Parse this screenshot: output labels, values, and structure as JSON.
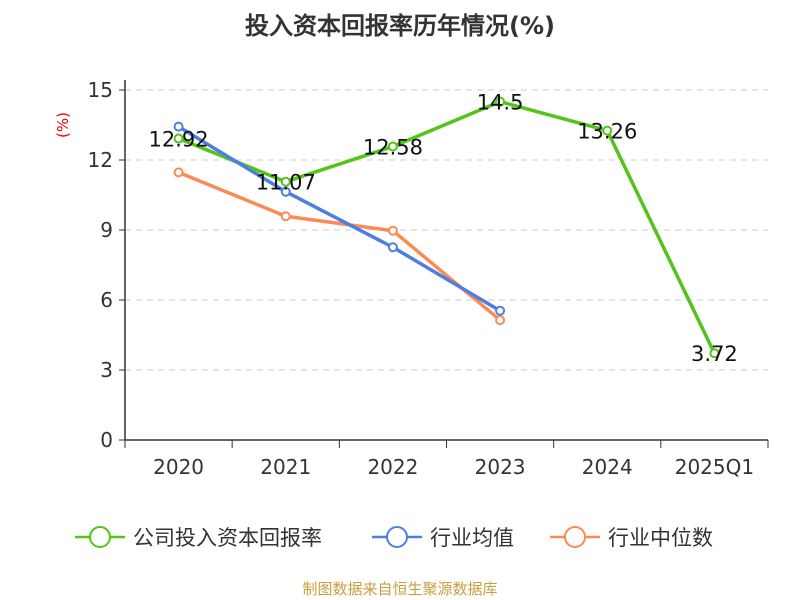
{
  "chart_data": {
    "type": "line",
    "title": "投入资本回报率历年情况(%)",
    "ylabel": "(%)",
    "xlabel": "",
    "categories": [
      "2020",
      "2021",
      "2022",
      "2023",
      "2024",
      "2025Q1"
    ],
    "ylim": [
      0,
      15
    ],
    "yticks": [
      0,
      3,
      6,
      9,
      12,
      15
    ],
    "grid": true,
    "legend_position": "bottom",
    "series": [
      {
        "name": "公司投入资本回报率",
        "color": "#52c41a",
        "values": [
          12.92,
          11.07,
          12.58,
          14.5,
          13.26,
          3.72
        ],
        "labels": [
          "12.92",
          "11.07",
          "12.58",
          "14.5",
          "13.26",
          "3.72"
        ]
      },
      {
        "name": "行业均值",
        "color": "#4e7fe0",
        "values": [
          13.43,
          10.64,
          8.26,
          5.54,
          null,
          null
        ]
      },
      {
        "name": "行业中位数",
        "color": "#fb8a55",
        "values": [
          11.47,
          9.59,
          8.97,
          5.14,
          null,
          null
        ]
      }
    ]
  },
  "footer": "制图数据来自恒生聚源数据库"
}
